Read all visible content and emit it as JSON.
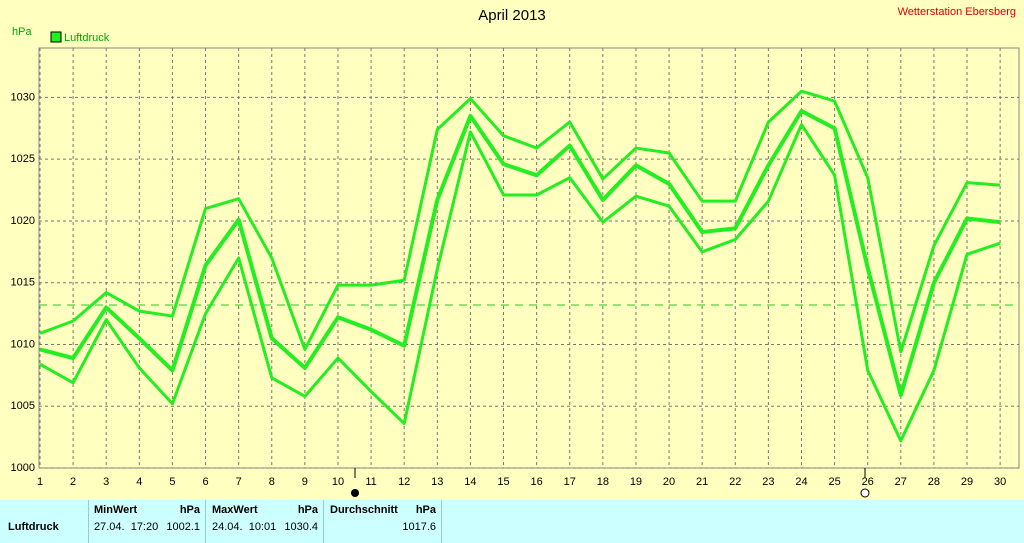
{
  "chart_data": {
    "type": "line",
    "title": "April 2013",
    "ylabel": "hPa",
    "annotation": "Wetterstation Ebersberg",
    "x": [
      1,
      2,
      3,
      4,
      5,
      6,
      7,
      8,
      9,
      10,
      11,
      12,
      13,
      14,
      15,
      16,
      17,
      18,
      19,
      20,
      21,
      22,
      23,
      24,
      25,
      26,
      27,
      28,
      29,
      30
    ],
    "xlim": [
      1,
      30.6
    ],
    "xticks": [
      1,
      2,
      3,
      4,
      5,
      6,
      7,
      8,
      9,
      10,
      11,
      12,
      13,
      14,
      15,
      16,
      17,
      18,
      19,
      20,
      21,
      22,
      23,
      24,
      25,
      26,
      27,
      28,
      29,
      30
    ],
    "ylim": [
      1000,
      1034
    ],
    "yticks": [
      1000,
      1005,
      1010,
      1015,
      1020,
      1025,
      1030
    ],
    "grid": true,
    "series": [
      {
        "name": "Luftdruck",
        "color": "#22ee22",
        "values": [
          1009.6,
          1008.9,
          1013.0,
          1010.5,
          1007.9,
          1016.4,
          1020.1,
          1010.5,
          1008.1,
          1012.2,
          1011.2,
          1009.9,
          1021.7,
          1028.5,
          1024.6,
          1023.7,
          1026.1,
          1021.7,
          1024.5,
          1023.0,
          1019.1,
          1019.4,
          1024.5,
          1028.9,
          1027.5,
          1016.2,
          1005.9,
          1015.0,
          1020.2,
          1019.9
        ]
      },
      {
        "color": "#22ee22",
        "values": [
          1010.9,
          1011.9,
          1014.2,
          1012.7,
          1012.3,
          1021.0,
          1021.8,
          1017.0,
          1009.6,
          1014.8,
          1014.8,
          1015.2,
          1027.4,
          1029.9,
          1026.9,
          1025.9,
          1028.0,
          1023.4,
          1025.9,
          1025.5,
          1021.6,
          1021.6,
          1028.0,
          1030.5,
          1029.7,
          1023.5,
          1009.4,
          1018.0,
          1023.1,
          1022.9
        ]
      },
      {
        "color": "#22ee22",
        "values": [
          1008.4,
          1006.9,
          1012.0,
          1008.1,
          1005.2,
          1012.5,
          1017.0,
          1007.3,
          1005.8,
          1008.9,
          1006.2,
          1003.6,
          1016.1,
          1027.2,
          1022.1,
          1022.1,
          1023.5,
          1019.9,
          1022.0,
          1021.2,
          1017.5,
          1018.5,
          1021.6,
          1027.8,
          1023.7,
          1007.9,
          1002.2,
          1007.9,
          1017.3,
          1018.2
        ]
      }
    ],
    "average_line": 1013.2
  },
  "table": {
    "header": [
      "MinWert",
      "hPa",
      "MaxWert",
      "hPa",
      "Durchschnitt",
      "hPa"
    ],
    "rows": [
      [
        "Luftdruck",
        "27.04.  17:20",
        "1002.1",
        "24.04.  10:01",
        "1030.4",
        "1017.6"
      ]
    ]
  }
}
